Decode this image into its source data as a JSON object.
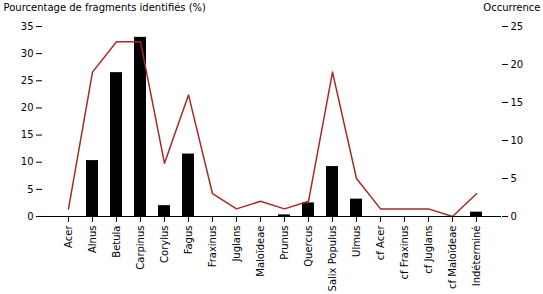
{
  "chart_data": {
    "type": "bar",
    "categories": [
      "Acer",
      "Alnus",
      "Betula",
      "Carpinus",
      "Corylus",
      "Fagus",
      "Fraxinus",
      "Juglans",
      "Maloïdeae",
      "Prunus",
      "Quercus",
      "Salix Populus",
      "Ulmus",
      "cf Acer",
      "cf Fraxinus",
      "cf Juglans",
      "cf Maloïdeae",
      "Indéterminé"
    ],
    "series": [
      {
        "type": "bar",
        "color": "#000000",
        "values": [
          0,
          10.3,
          26.5,
          33.0,
          2.0,
          11.5,
          0,
          0,
          0,
          0.3,
          2.5,
          9.2,
          3.2,
          0,
          0,
          0,
          0,
          0.8
        ]
      },
      {
        "type": "line",
        "axis": "y2",
        "color": "#a52a2a",
        "values": [
          1,
          19,
          23,
          23,
          7,
          16,
          3,
          1,
          2,
          1,
          2,
          19,
          5,
          1,
          1,
          1,
          0,
          3
        ]
      }
    ],
    "ylabel": "Pourcentage de fragments identifiés (%)",
    "y2label": "Occurrence",
    "ylim": [
      0,
      35
    ],
    "yticks": [
      0,
      5,
      10,
      15,
      20,
      25,
      30,
      35
    ],
    "y2lim": [
      0,
      25
    ],
    "y2ticks": [
      0,
      5,
      10,
      15,
      20,
      25
    ]
  }
}
